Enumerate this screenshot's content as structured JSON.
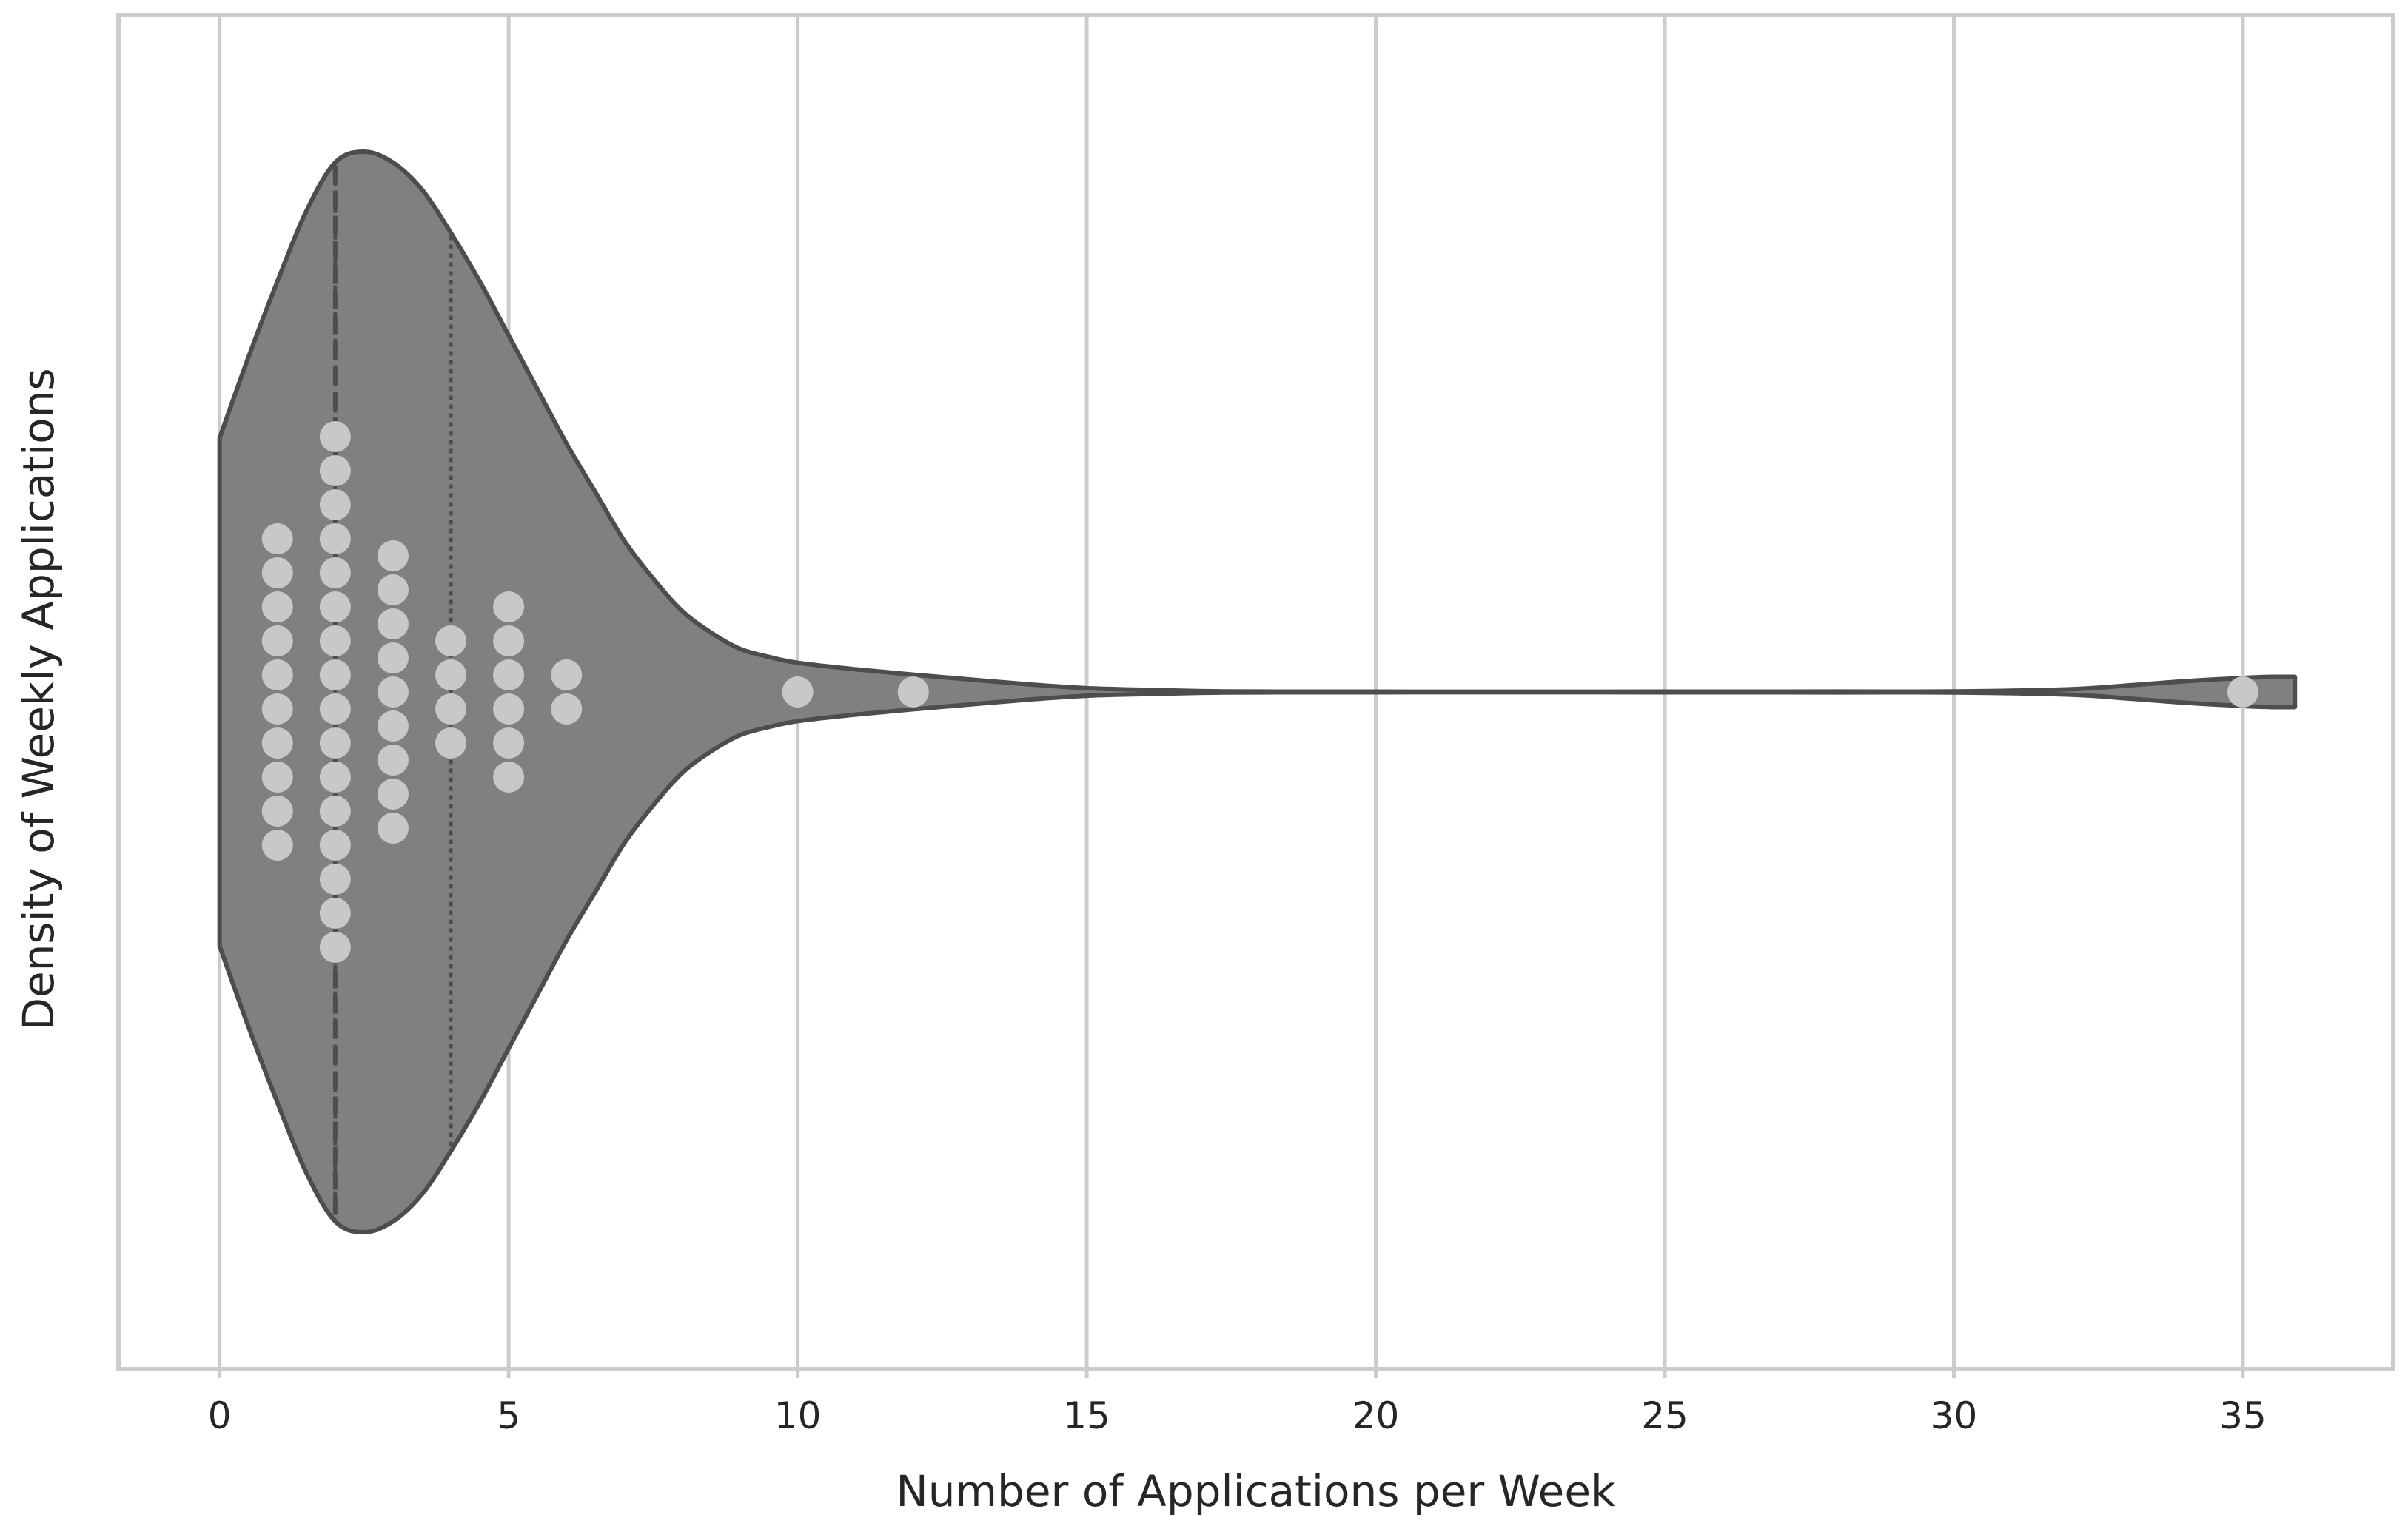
{
  "chart_data": {
    "type": "violin",
    "orientation": "horizontal",
    "xlabel": "Number of Applications per Week",
    "ylabel": "Density of Weekly Applications",
    "xlim": [
      -1.75,
      37.6
    ],
    "x_ticks": [
      0,
      5,
      10,
      15,
      20,
      25,
      30,
      35
    ],
    "x_tick_labels": [
      "0",
      "5",
      "10",
      "15",
      "20",
      "25",
      "30",
      "35"
    ],
    "grid": "vertical",
    "quartiles": {
      "q1": 2,
      "median": 2,
      "q3": 4
    },
    "density_profile": {
      "x": [
        0,
        0.5,
        1,
        1.5,
        2,
        2.5,
        3,
        3.5,
        4,
        4.5,
        5,
        5.5,
        6,
        6.5,
        7,
        7.5,
        8,
        8.5,
        9,
        9.5,
        10,
        11,
        12,
        13,
        14,
        15,
        16,
        17,
        18,
        20,
        25,
        28,
        30,
        32,
        33,
        34,
        35,
        35.5,
        35.9
      ],
      "half_width": [
        0.47,
        0.62,
        0.76,
        0.89,
        0.98,
        1.0,
        0.98,
        0.93,
        0.85,
        0.76,
        0.66,
        0.56,
        0.46,
        0.37,
        0.28,
        0.21,
        0.15,
        0.11,
        0.08,
        0.065,
        0.054,
        0.042,
        0.032,
        0.023,
        0.014,
        0.007,
        0.004,
        0.0015,
        0.0008,
        0.0006,
        0.0006,
        0.0008,
        0.001,
        0.005,
        0.012,
        0.02,
        0.026,
        0.028,
        0.028
      ]
    },
    "points": {
      "x": [
        1,
        2,
        3,
        4,
        5,
        6,
        10,
        12,
        35
      ],
      "counts": [
        10,
        16,
        9,
        4,
        6,
        2,
        1,
        1,
        1
      ]
    },
    "colors": {
      "violin_fill": "#808080",
      "violin_edge": "#4d4d4d",
      "points": "#c8c8c8",
      "grid": "#cccccc",
      "frame": "#cccccc",
      "text": "#262626"
    }
  }
}
